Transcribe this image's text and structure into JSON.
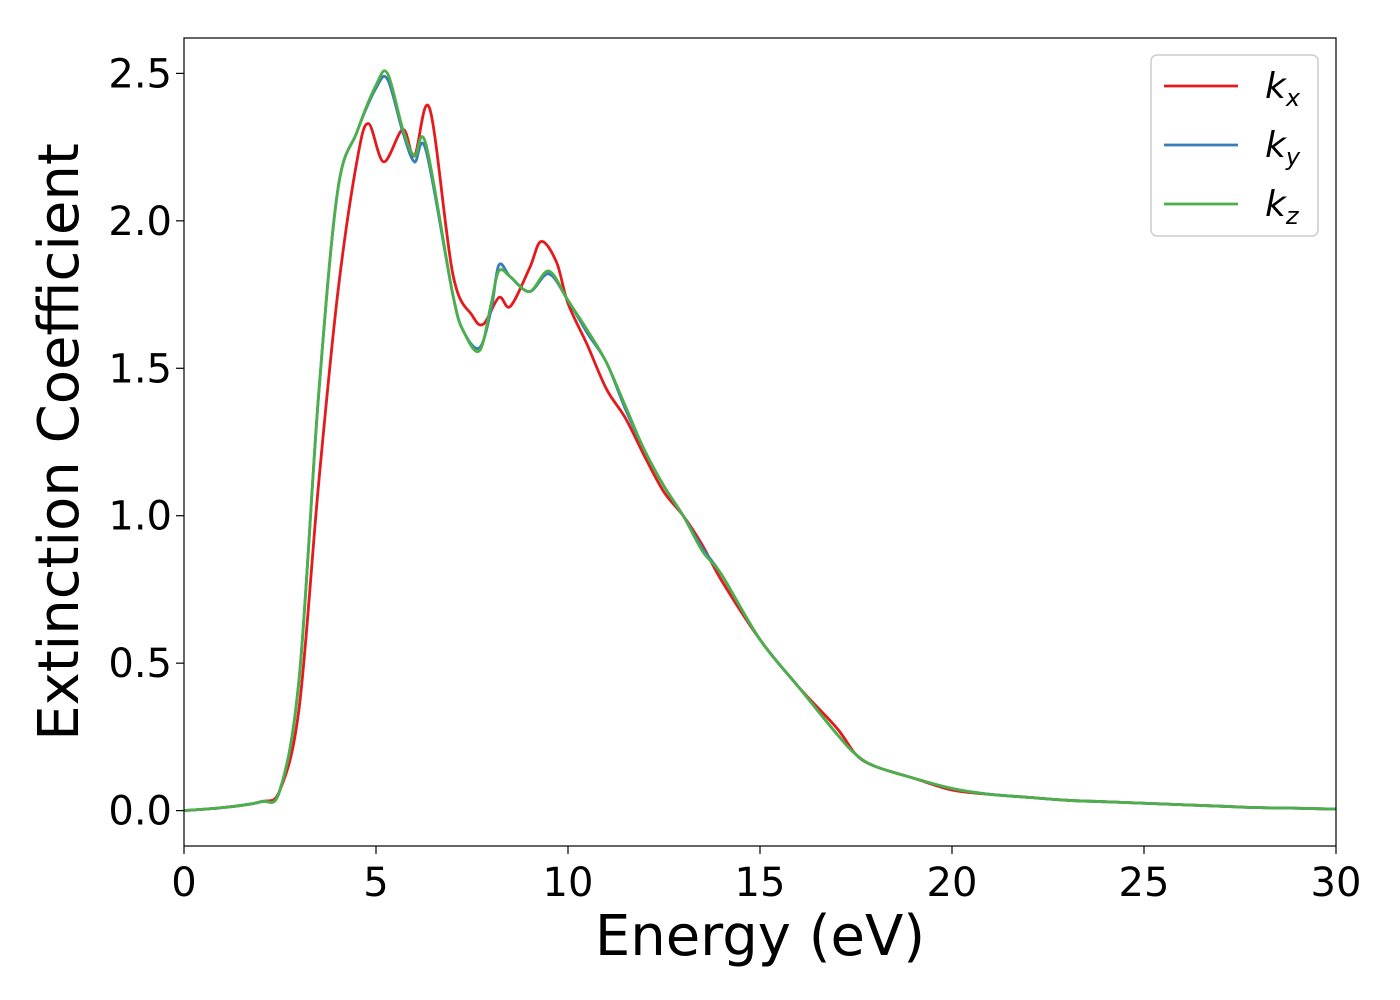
{
  "chart_data": {
    "type": "line",
    "title": "",
    "xlabel": "Energy (eV)",
    "ylabel": "Extinction Coefficient",
    "xlim": [
      0,
      30
    ],
    "ylim": [
      -0.12,
      2.62
    ],
    "xticks": [
      0,
      5,
      10,
      15,
      20,
      25,
      30
    ],
    "xtick_labels": [
      "0",
      "5",
      "10",
      "15",
      "20",
      "25",
      "30"
    ],
    "yticks": [
      0.0,
      0.5,
      1.0,
      1.5,
      2.0,
      2.5
    ],
    "ytick_labels": [
      "0.0",
      "0.5",
      "1.0",
      "1.5",
      "2.0",
      "2.5"
    ],
    "grid": false,
    "legend_position": "top-right",
    "series": [
      {
        "name": "k",
        "subscript": "x",
        "color": "#e41a1c",
        "x": [
          0,
          1,
          2,
          2.5,
          3,
          3.5,
          4,
          4.5,
          4.8,
          5.2,
          5.7,
          6,
          6.4,
          7,
          7.5,
          7.8,
          8.2,
          8.5,
          9,
          9.3,
          9.7,
          10,
          10.5,
          11,
          11.5,
          12,
          12.5,
          13,
          13.5,
          14,
          15,
          16,
          17,
          17.5,
          18,
          19,
          20,
          21,
          22,
          23,
          24,
          25,
          26,
          27,
          28,
          29,
          30
        ],
        "y": [
          0.0,
          0.01,
          0.03,
          0.07,
          0.35,
          1.1,
          1.75,
          2.2,
          2.33,
          2.2,
          2.31,
          2.22,
          2.38,
          1.82,
          1.68,
          1.65,
          1.74,
          1.71,
          1.84,
          1.93,
          1.86,
          1.72,
          1.58,
          1.43,
          1.33,
          1.2,
          1.08,
          1.0,
          0.9,
          0.78,
          0.58,
          0.42,
          0.28,
          0.19,
          0.15,
          0.11,
          0.07,
          0.055,
          0.045,
          0.035,
          0.03,
          0.025,
          0.02,
          0.015,
          0.01,
          0.008,
          0.005
        ]
      },
      {
        "name": "k",
        "subscript": "y",
        "color": "#377eb8",
        "x": [
          0,
          1,
          2,
          2.5,
          3,
          3.5,
          4,
          4.5,
          5,
          5.3,
          5.7,
          6,
          6.3,
          7,
          7.3,
          7.7,
          8,
          8.2,
          8.5,
          9,
          9.5,
          10,
          10.5,
          11,
          11.5,
          12,
          12.5,
          13,
          13.5,
          14,
          15,
          16,
          17,
          17.5,
          18,
          19,
          20,
          21,
          22,
          23,
          24,
          25,
          26,
          27,
          28,
          29,
          30
        ],
        "y": [
          0.0,
          0.01,
          0.03,
          0.07,
          0.45,
          1.4,
          2.1,
          2.3,
          2.45,
          2.48,
          2.3,
          2.2,
          2.24,
          1.75,
          1.62,
          1.57,
          1.7,
          1.85,
          1.81,
          1.76,
          1.82,
          1.73,
          1.62,
          1.52,
          1.36,
          1.22,
          1.1,
          1.0,
          0.89,
          0.8,
          0.58,
          0.42,
          0.26,
          0.19,
          0.15,
          0.11,
          0.075,
          0.055,
          0.045,
          0.035,
          0.03,
          0.025,
          0.02,
          0.015,
          0.01,
          0.008,
          0.005
        ]
      },
      {
        "name": "k",
        "subscript": "z",
        "color": "#4daf4a",
        "x": [
          0,
          1,
          2,
          2.5,
          3,
          3.5,
          4,
          4.5,
          5,
          5.3,
          5.7,
          6,
          6.3,
          7,
          7.3,
          7.7,
          8,
          8.2,
          8.5,
          9,
          9.5,
          10,
          10.5,
          11,
          11.5,
          12,
          12.5,
          13,
          13.5,
          14,
          15,
          16,
          17,
          17.5,
          18,
          19,
          20,
          21,
          22,
          23,
          24,
          25,
          26,
          27,
          28,
          29,
          30
        ],
        "y": [
          0.0,
          0.01,
          0.03,
          0.07,
          0.45,
          1.4,
          2.1,
          2.3,
          2.46,
          2.5,
          2.31,
          2.22,
          2.26,
          1.75,
          1.62,
          1.56,
          1.72,
          1.83,
          1.81,
          1.76,
          1.83,
          1.73,
          1.63,
          1.52,
          1.37,
          1.22,
          1.1,
          1.0,
          0.88,
          0.8,
          0.58,
          0.42,
          0.26,
          0.19,
          0.15,
          0.11,
          0.075,
          0.055,
          0.045,
          0.035,
          0.03,
          0.025,
          0.02,
          0.015,
          0.01,
          0.008,
          0.005
        ]
      }
    ]
  }
}
